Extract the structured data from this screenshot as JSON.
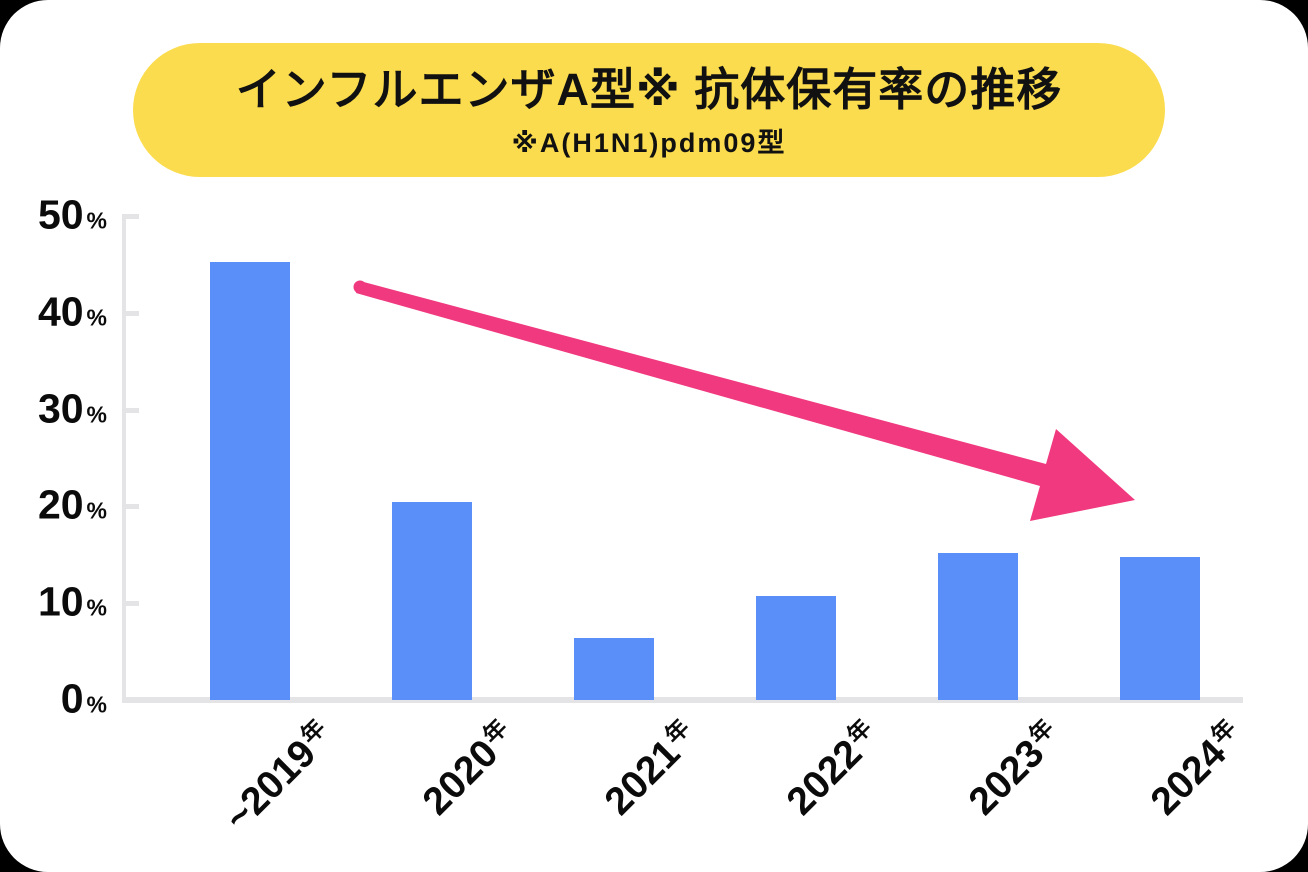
{
  "banner": {
    "title": "インフルエンザA型※ 抗体保有率の推移",
    "subtitle": "※A(H1N1)pdm09型",
    "background_color": "#FBDC4E"
  },
  "chart_data": {
    "type": "bar",
    "title": "インフルエンザA型※ 抗体保有率の推移",
    "subtitle": "※A(H1N1)pdm09型",
    "categories": [
      "~2019年",
      "2020年",
      "2021年",
      "2022年",
      "2023年",
      "2024年"
    ],
    "values": [
      45.3,
      20.5,
      6.4,
      10.7,
      15.2,
      14.8
    ],
    "value_unit": "%",
    "xlabel": "",
    "ylabel": "",
    "ylim": [
      0,
      50
    ],
    "yticks": [
      0,
      10,
      20,
      30,
      40,
      50
    ],
    "ytick_suffix": "%",
    "grid": false,
    "legend": false,
    "category_unit": "年",
    "bar_color": "#5A8EF8",
    "axis_color": "#E4E4E6",
    "annotations": [
      {
        "type": "arrow",
        "color": "#F0397E",
        "description": "declining trend arrow from above first bar down toward last bar"
      }
    ]
  }
}
